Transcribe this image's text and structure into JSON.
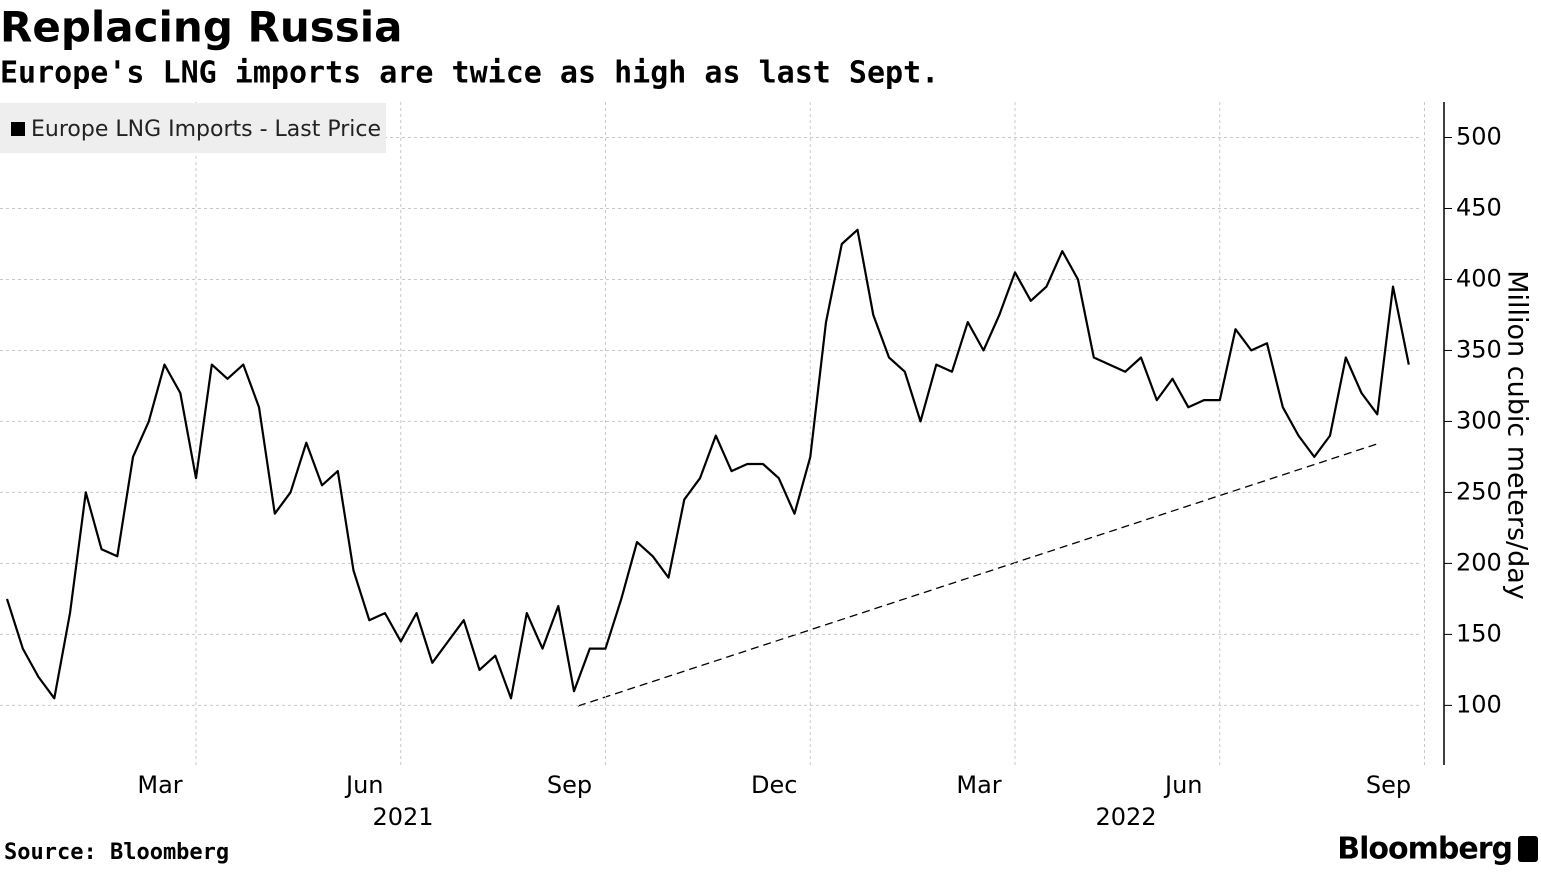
{
  "chart_data": {
    "type": "line",
    "title": "Replacing Russia",
    "subtitle": "Europe's LNG imports are twice as high as last Sept.",
    "source": "Source: Bloomberg",
    "brand": "Bloomberg",
    "y_axis_label": "Million cubic meters/day",
    "year_labels": [
      "2021",
      "2022"
    ],
    "categories": [
      null,
      null,
      null,
      null,
      null,
      null,
      null,
      null,
      null,
      null,
      null,
      null,
      "Mar",
      null,
      null,
      null,
      null,
      null,
      null,
      null,
      null,
      null,
      null,
      null,
      null,
      "Jun",
      null,
      null,
      null,
      null,
      null,
      null,
      null,
      null,
      null,
      null,
      null,
      null,
      "Sep",
      null,
      null,
      null,
      null,
      null,
      null,
      null,
      null,
      null,
      null,
      null,
      null,
      "Dec",
      null,
      null,
      null,
      null,
      null,
      null,
      null,
      null,
      null,
      null,
      null,
      null,
      "Mar",
      null,
      null,
      null,
      null,
      null,
      null,
      null,
      null,
      null,
      null,
      null,
      null,
      "Jun",
      null,
      null,
      null,
      null,
      null,
      null,
      null,
      null,
      null,
      null,
      null,
      null,
      "Sep"
    ],
    "series": [
      {
        "name": "Europe LNG Imports - Last Price",
        "color": "#000000",
        "values": [
          175,
          140,
          120,
          105,
          165,
          250,
          210,
          205,
          275,
          300,
          340,
          320,
          260,
          340,
          330,
          340,
          310,
          235,
          250,
          285,
          255,
          265,
          195,
          160,
          165,
          145,
          165,
          130,
          145,
          160,
          125,
          135,
          105,
          165,
          140,
          170,
          110,
          140,
          140,
          175,
          215,
          205,
          190,
          245,
          260,
          290,
          265,
          270,
          270,
          260,
          235,
          275,
          370,
          425,
          435,
          375,
          345,
          335,
          300,
          340,
          335,
          370,
          350,
          375,
          405,
          385,
          395,
          420,
          400,
          345,
          340,
          335,
          345,
          315,
          330,
          310,
          315,
          315,
          365,
          350,
          355,
          310,
          290,
          275,
          290,
          345,
          320,
          305,
          395,
          340,
          null
        ]
      }
    ],
    "ylim": [
      58,
      525
    ],
    "yticks": [
      100,
      150,
      200,
      250,
      300,
      350,
      400,
      450,
      500
    ],
    "grid": true,
    "legend": "top-left"
  }
}
